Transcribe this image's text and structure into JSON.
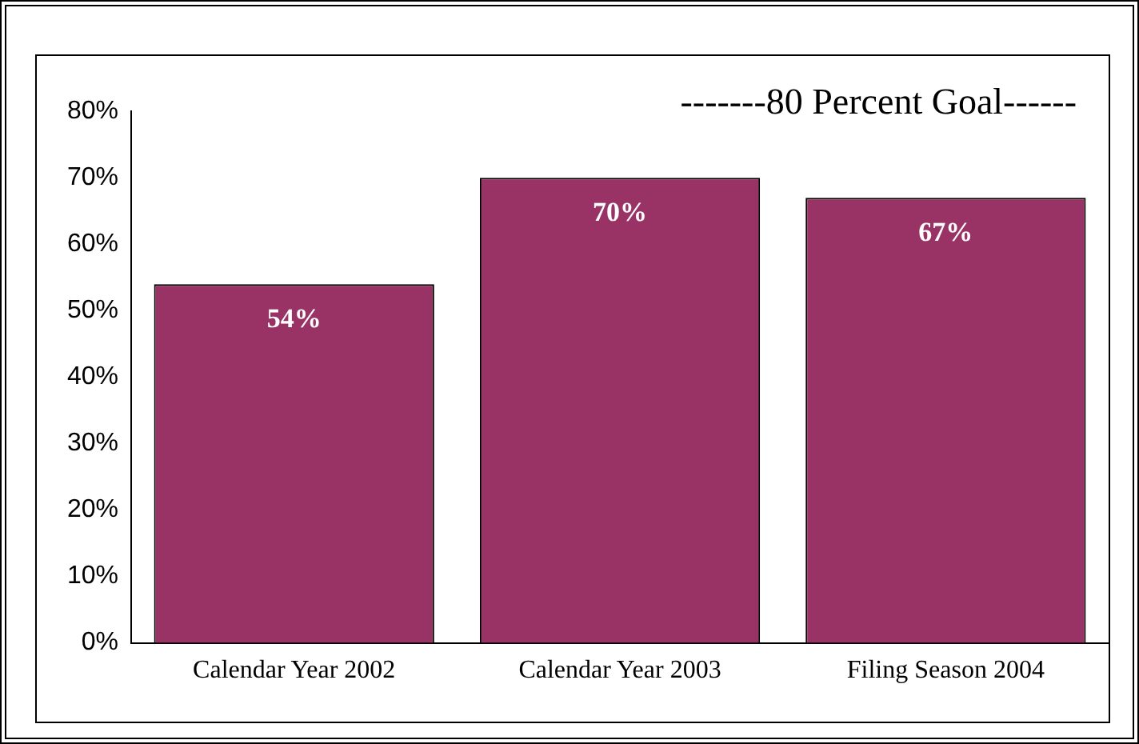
{
  "chart_data": {
    "type": "bar",
    "categories": [
      "Calendar Year 2002",
      "Calendar Year 2003",
      "Filing Season 2004"
    ],
    "values": [
      54,
      70,
      67
    ],
    "color": "#993366",
    "value_labels": [
      "54%",
      "70%",
      "67%"
    ],
    "ylim": [
      0,
      80
    ],
    "yticks": [
      {
        "value": 0,
        "label": "0%"
      },
      {
        "value": 10,
        "label": "10%"
      },
      {
        "value": 20,
        "label": "20%"
      },
      {
        "value": 30,
        "label": "30%"
      },
      {
        "value": 40,
        "label": "40%"
      },
      {
        "value": 50,
        "label": "50%"
      },
      {
        "value": 60,
        "label": "60%"
      },
      {
        "value": 70,
        "label": "70%"
      },
      {
        "value": 80,
        "label": "80%"
      }
    ],
    "annotations": [
      "-------80 Percent Goal------"
    ],
    "grid": false,
    "legend": false
  }
}
